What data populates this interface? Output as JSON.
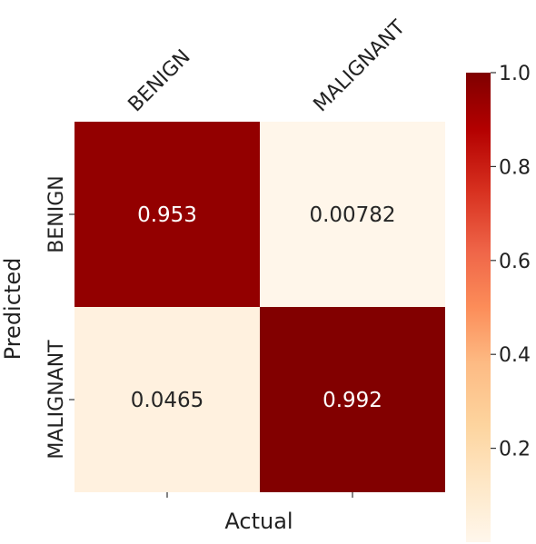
{
  "chart_data": {
    "type": "heatmap",
    "title": "",
    "xlabel": "Actual",
    "ylabel": "Predicted",
    "x_categories": [
      "BENIGN",
      "MALIGNANT"
    ],
    "y_categories": [
      "BENIGN",
      "MALIGNANT"
    ],
    "values": [
      [
        0.953,
        0.00782
      ],
      [
        0.0465,
        0.992
      ]
    ],
    "value_labels": [
      [
        "0.953",
        "0.00782"
      ],
      [
        "0.0465",
        "0.992"
      ]
    ],
    "colorbar": {
      "range": [
        0.0,
        1.0
      ],
      "ticks": [
        0.2,
        0.4,
        0.6,
        0.8,
        1.0
      ],
      "tick_labels": [
        "0.2",
        "0.4",
        "0.6",
        "0.8",
        "1.0"
      ],
      "colormap": "OrRd",
      "low_color": "#fff7ec",
      "high_color": "#7f0000"
    },
    "text_color_light": "#ffffff",
    "text_color_dark": "#262626"
  }
}
